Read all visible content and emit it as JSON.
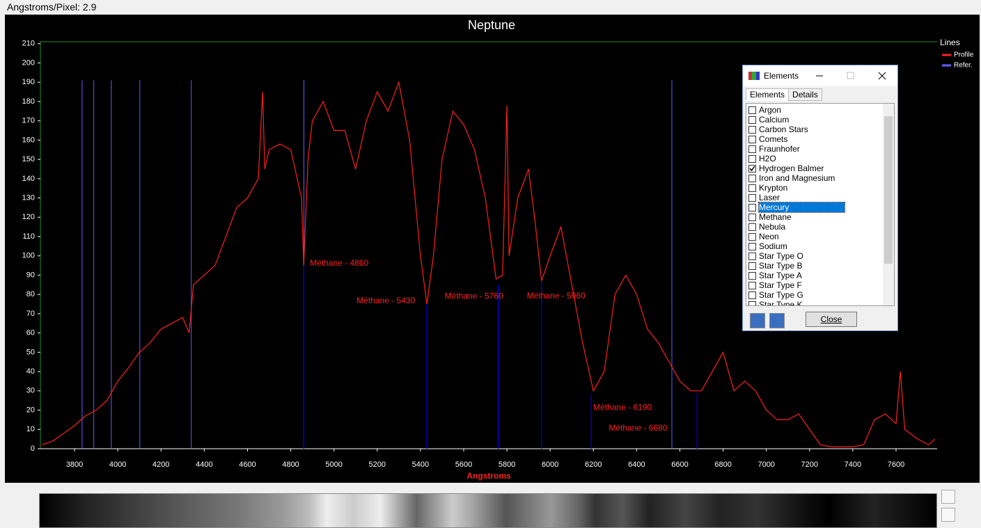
{
  "header": {
    "text": "Angstroms/Pixel: 2.9"
  },
  "chart_data": {
    "type": "line",
    "title": "Neptune",
    "x_label": "Angstroms",
    "xlim": [
      3642,
      7790
    ],
    "ylim": [
      0,
      211
    ],
    "xticks": [
      3800,
      4000,
      4200,
      4400,
      4600,
      4800,
      5000,
      5200,
      5400,
      5600,
      5800,
      6000,
      6200,
      6400,
      6600,
      6800,
      7000,
      7200,
      7400,
      7600
    ],
    "yticks": [
      0,
      10,
      20,
      30,
      40,
      50,
      60,
      70,
      80,
      90,
      100,
      110,
      120,
      130,
      140,
      150,
      160,
      170,
      180,
      190,
      200,
      210
    ],
    "legend_title": "Lines",
    "legend": "upper right",
    "series": [
      {
        "name": "Profile",
        "color": "#ff2020",
        "style": "line",
        "x": [
          3650,
          3700,
          3750,
          3800,
          3850,
          3900,
          3950,
          4000,
          4050,
          4100,
          4150,
          4200,
          4250,
          4300,
          4330,
          4350,
          4400,
          4450,
          4500,
          4550,
          4600,
          4650,
          4670,
          4680,
          4700,
          4750,
          4800,
          4850,
          4860,
          4880,
          4900,
          4950,
          5000,
          5050,
          5100,
          5150,
          5200,
          5250,
          5300,
          5350,
          5400,
          5430,
          5460,
          5500,
          5550,
          5600,
          5650,
          5700,
          5750,
          5780,
          5800,
          5810,
          5850,
          5900,
          5930,
          5960,
          6000,
          6050,
          6100,
          6150,
          6200,
          6250,
          6300,
          6350,
          6400,
          6450,
          6500,
          6550,
          6600,
          6650,
          6700,
          6750,
          6800,
          6850,
          6900,
          6950,
          7000,
          7050,
          7100,
          7150,
          7200,
          7250,
          7300,
          7350,
          7400,
          7450,
          7500,
          7550,
          7600,
          7620,
          7640,
          7700,
          7750,
          7780
        ],
        "values": [
          2,
          4,
          8,
          12,
          17,
          20,
          25,
          35,
          42,
          50,
          55,
          62,
          65,
          68,
          60,
          85,
          90,
          95,
          110,
          125,
          130,
          140,
          185,
          145,
          155,
          158,
          155,
          130,
          95,
          150,
          170,
          180,
          165,
          165,
          145,
          170,
          185,
          175,
          190,
          160,
          100,
          75,
          100,
          150,
          175,
          168,
          155,
          130,
          88,
          90,
          178,
          100,
          130,
          145,
          118,
          87,
          100,
          115,
          85,
          55,
          30,
          40,
          80,
          90,
          80,
          62,
          55,
          45,
          35,
          30,
          30,
          40,
          50,
          30,
          35,
          30,
          20,
          15,
          15,
          18,
          10,
          2,
          1,
          1,
          1,
          2,
          15,
          18,
          13,
          40,
          10,
          5,
          2,
          5
        ]
      },
      {
        "name": "Refer.",
        "color": "#6060ff",
        "style": "vlines",
        "x": [
          3835,
          3889,
          3970,
          4102,
          4340,
          4861,
          6563
        ],
        "values": [
          191,
          191,
          191,
          191,
          191,
          191,
          191
        ]
      }
    ],
    "annotation_color": "#0000cc",
    "annotations": [
      {
        "text": "Méthane - 4860",
        "x": 4860,
        "y": 95
      },
      {
        "text": "Méthane - 5430",
        "x": 5430,
        "y": 75
      },
      {
        "text": "Méthane - 5760",
        "x": 5760,
        "y": 85
      },
      {
        "text": "Méthane - 5960",
        "x": 5960,
        "y": 87
      },
      {
        "text": "Méthane - 6190",
        "x": 6190,
        "y": 28
      },
      {
        "text": "Méthane - 6680",
        "x": 6680,
        "y": 29
      }
    ]
  },
  "dialog": {
    "title": "Elements",
    "tabs": [
      "Elements",
      "Details"
    ],
    "button": "Close",
    "items": [
      {
        "label": "Argon",
        "checked": false,
        "selected": false
      },
      {
        "label": "Calcium",
        "checked": false,
        "selected": false
      },
      {
        "label": "Carbon Stars",
        "checked": false,
        "selected": false
      },
      {
        "label": "Comets",
        "checked": false,
        "selected": false
      },
      {
        "label": "Fraunhofer",
        "checked": false,
        "selected": false
      },
      {
        "label": "H2O",
        "checked": false,
        "selected": false
      },
      {
        "label": "Hydrogen Balmer",
        "checked": true,
        "selected": false
      },
      {
        "label": "Iron and Magnesium",
        "checked": false,
        "selected": false
      },
      {
        "label": "Krypton",
        "checked": false,
        "selected": false
      },
      {
        "label": "Laser",
        "checked": false,
        "selected": false
      },
      {
        "label": "Mercury",
        "checked": false,
        "selected": true
      },
      {
        "label": "Methane",
        "checked": false,
        "selected": false
      },
      {
        "label": "Nebula",
        "checked": false,
        "selected": false
      },
      {
        "label": "Neon",
        "checked": false,
        "selected": false
      },
      {
        "label": "Sodium",
        "checked": false,
        "selected": false
      },
      {
        "label": "Star Type O",
        "checked": false,
        "selected": false
      },
      {
        "label": "Star Type B",
        "checked": false,
        "selected": false
      },
      {
        "label": "Star Type A",
        "checked": false,
        "selected": false
      },
      {
        "label": "Star Type F",
        "checked": false,
        "selected": false
      },
      {
        "label": "Star Type G",
        "checked": false,
        "selected": false
      },
      {
        "label": "Star Type K",
        "checked": false,
        "selected": false
      }
    ]
  }
}
